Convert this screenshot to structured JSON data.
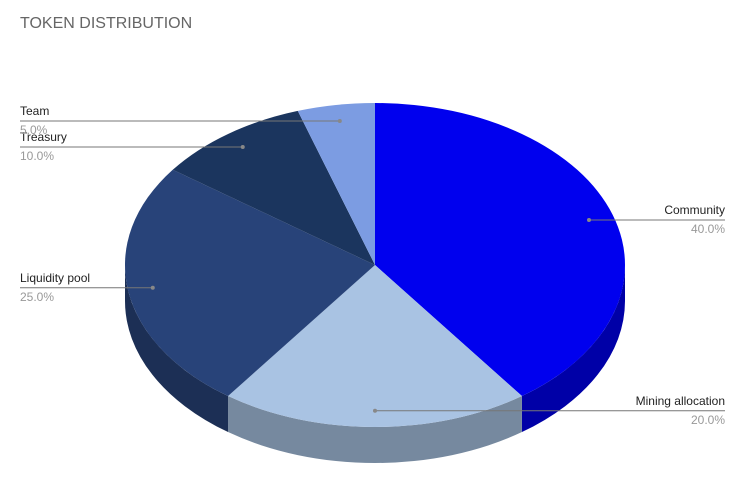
{
  "chart_data": {
    "type": "pie3d",
    "title": "TOKEN DISTRIBUTION",
    "categories": [
      "Community",
      "Mining allocation",
      "Liquidity pool",
      "Treasury",
      "Team"
    ],
    "values": [
      40,
      20,
      25,
      10,
      5
    ],
    "value_labels": [
      "40.0%",
      "20.0%",
      "25.0%",
      "10.0%",
      "5.0%"
    ],
    "colors": [
      "#0000ee",
      "#a9c3e3",
      "#284379",
      "#1b355e",
      "#7c9ce2"
    ]
  }
}
